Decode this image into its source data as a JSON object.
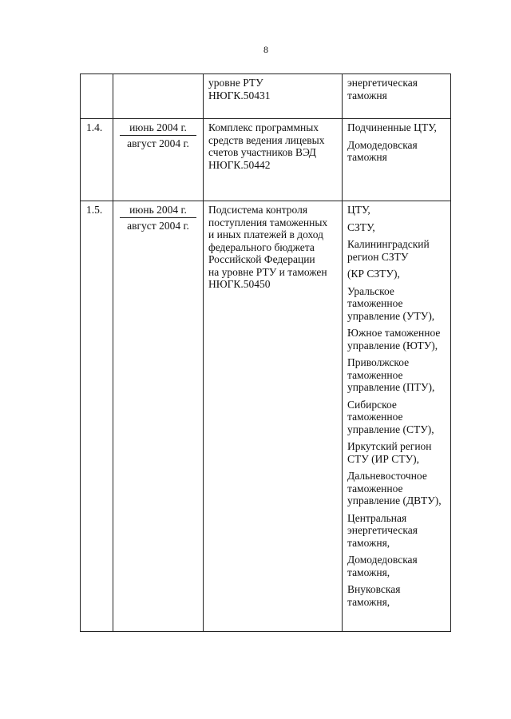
{
  "page_number": "8",
  "rows": [
    {
      "num": "",
      "date_from": "",
      "date_to": "",
      "description": [
        "уровне РТУ",
        "НЮГК.50431"
      ],
      "organizations": [
        [
          "энергетическая",
          "таможня"
        ]
      ]
    },
    {
      "num": "1.4.",
      "date_from": "июнь 2004 г.",
      "date_to": "август 2004 г.",
      "description": [
        "Комплекс программных",
        "средств ведения лицевых",
        "счетов участников ВЭД",
        "НЮГК.50442"
      ],
      "organizations": [
        [
          "Подчиненные ЦТУ,"
        ],
        [
          "Домодедовская",
          "таможня"
        ]
      ]
    },
    {
      "num": "1.5.",
      "date_from": "июнь 2004 г.",
      "date_to": "август 2004 г.",
      "description": [
        "Подсистема контроля",
        "поступления таможенных",
        "и иных платежей в доход",
        "федерального бюджета",
        "Российской  Федерации",
        "на уровне РТУ и таможен",
        "НЮГК.50450"
      ],
      "organizations": [
        [
          "ЦТУ,"
        ],
        [
          "СЗТУ,"
        ],
        [
          "Калининградский",
          "регион СЗТУ"
        ],
        [
          "(КР СЗТУ),"
        ],
        [
          "Уральское",
          "таможенное",
          "управление (УТУ),"
        ],
        [
          "Южное таможенное",
          "управление (ЮТУ),"
        ],
        [
          "Приволжское",
          "таможенное",
          "управление (ПТУ),"
        ],
        [
          "Сибирское",
          "таможенное",
          "управление (СТУ),"
        ],
        [
          "Иркутский регион",
          "СТУ (ИР СТУ),"
        ],
        [
          "Дальневосточное",
          "таможенное",
          "управление (ДВТУ),"
        ],
        [
          "Центральная",
          "энергетическая",
          "таможня,"
        ],
        [
          "Домодедовская",
          "таможня,"
        ],
        [
          "Внуковская",
          "таможня,"
        ]
      ]
    }
  ]
}
